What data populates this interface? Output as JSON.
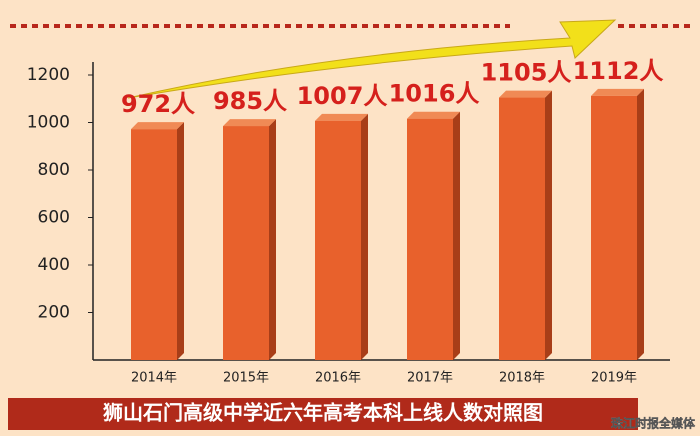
{
  "chart_data": {
    "type": "bar",
    "title": "狮山石门高级中学近六年高考本科上线人数对照图",
    "source": "珠江时报全媒体",
    "categories": [
      "2014年",
      "2015年",
      "2016年",
      "2017年",
      "2018年",
      "2019年"
    ],
    "values": [
      972,
      985,
      1007,
      1016,
      1105,
      1112
    ],
    "value_labels": [
      "972人",
      "985人",
      "1007人",
      "1016人",
      "1105人",
      "1112人"
    ],
    "color": "#e8612c",
    "ylim": [
      0,
      1200
    ],
    "yticks": [
      200,
      400,
      600,
      800,
      1000,
      1200
    ],
    "grid": false
  }
}
